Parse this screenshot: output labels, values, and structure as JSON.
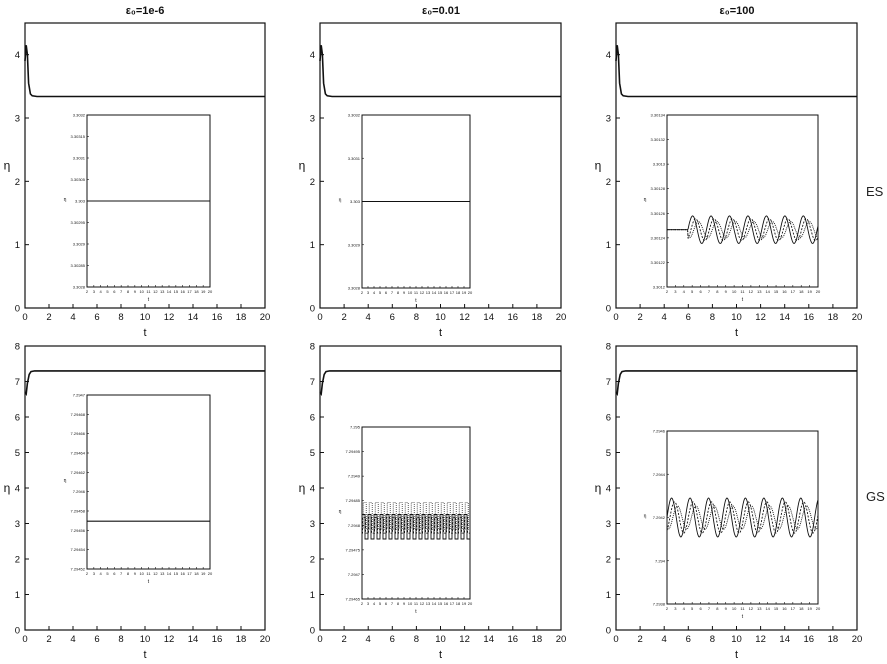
{
  "row_labels": [
    "ES",
    "GS"
  ],
  "chart_data": [
    {
      "type": "line",
      "column_title": "ε₀=1e-6",
      "xlabel": "t",
      "ylabel": "η",
      "xlim": [
        0,
        20
      ],
      "ylim": [
        0,
        4.5
      ],
      "xticks": [
        0,
        2,
        4,
        6,
        8,
        10,
        12,
        14,
        16,
        18,
        20
      ],
      "yticks": [
        0,
        1,
        2,
        3,
        4
      ],
      "series": [
        {
          "x": [
            0,
            0.1,
            0.2,
            0.3,
            0.45,
            0.6,
            1,
            2,
            20
          ],
          "y": [
            3.9,
            4.15,
            4.0,
            3.55,
            3.38,
            3.35,
            3.34,
            3.34,
            3.34
          ]
        }
      ],
      "inset": {
        "ylabel": "η",
        "xlabel": "t",
        "xlim": [
          2,
          20
        ],
        "ylim": [
          3.3028,
          3.3032
        ],
        "yticks": [
          "3.3028",
          "3.30285",
          "3.3029",
          "3.30295",
          "3.303",
          "3.30305",
          "3.3031",
          "3.30315",
          "3.3032"
        ],
        "behavior": "constant",
        "level": 3.303
      }
    },
    {
      "type": "line",
      "column_title": "ε₀=0.01",
      "xlabel": "t",
      "ylabel": "η",
      "xlim": [
        0,
        20
      ],
      "ylim": [
        0,
        4.5
      ],
      "xticks": [
        0,
        2,
        4,
        6,
        8,
        10,
        12,
        14,
        16,
        18,
        20
      ],
      "yticks": [
        0,
        1,
        2,
        3,
        4
      ],
      "series": [
        {
          "x": [
            0,
            0.1,
            0.2,
            0.3,
            0.45,
            0.6,
            1,
            2,
            20
          ],
          "y": [
            3.9,
            4.15,
            4.0,
            3.55,
            3.38,
            3.35,
            3.34,
            3.34,
            3.34
          ]
        }
      ],
      "inset": {
        "ylabel": "η",
        "xlabel": "t",
        "xlim": [
          2,
          20
        ],
        "ylim": [
          3.3028,
          3.3032
        ],
        "yticks": [
          "3.3028",
          "3.3029",
          "3.303",
          "3.3031",
          "3.3032"
        ],
        "behavior": "constant",
        "level": 3.303
      }
    },
    {
      "type": "line",
      "column_title": "ε₀=100",
      "xlabel": "t",
      "ylabel": "η",
      "xlim": [
        0,
        20
      ],
      "ylim": [
        0,
        4.5
      ],
      "xticks": [
        0,
        2,
        4,
        6,
        8,
        10,
        12,
        14,
        16,
        18,
        20
      ],
      "yticks": [
        0,
        1,
        2,
        3,
        4
      ],
      "series": [
        {
          "x": [
            0,
            0.1,
            0.2,
            0.3,
            0.45,
            0.6,
            1,
            2,
            20
          ],
          "y": [
            3.9,
            4.15,
            4.0,
            3.55,
            3.38,
            3.35,
            3.34,
            3.34,
            3.34
          ]
        }
      ],
      "inset": {
        "ylabel": "η",
        "xlabel": "t",
        "xlim": [
          2,
          20
        ],
        "ylim": [
          3.3012,
          3.30135
        ],
        "yticks": [
          "3.3012",
          "3.30122",
          "3.30124",
          "3.30126",
          "3.30128",
          "3.3013",
          "3.30132",
          "3.30134"
        ],
        "behavior": "oscillating",
        "mean": 3.30125,
        "amplitude": 1.2e-05,
        "period": 2.2,
        "start": 4.5
      }
    },
    {
      "type": "line",
      "column_title": "",
      "xlabel": "t",
      "ylabel": "η",
      "xlim": [
        0,
        20
      ],
      "ylim": [
        0,
        8
      ],
      "xticks": [
        0,
        2,
        4,
        6,
        8,
        10,
        12,
        14,
        16,
        18,
        20
      ],
      "yticks": [
        0,
        1,
        2,
        3,
        4,
        5,
        6,
        7,
        8
      ],
      "series": [
        {
          "x": [
            0,
            0.1,
            0.2,
            0.35,
            0.5,
            0.8,
            1.2,
            20
          ],
          "y": [
            6.7,
            6.65,
            6.95,
            7.2,
            7.28,
            7.3,
            7.3,
            7.3
          ]
        }
      ],
      "inset": {
        "ylabel": "η",
        "xlabel": "t",
        "xlim": [
          2,
          20
        ],
        "ylim": [
          7.2944,
          7.2952
        ],
        "yticks": [
          "7.29452",
          "7.29454",
          "7.29456",
          "7.29458",
          "7.2946",
          "7.29462",
          "7.29464",
          "7.29466",
          "7.29468",
          "7.2947"
        ],
        "behavior": "constant",
        "level": 7.29462
      }
    },
    {
      "type": "line",
      "column_title": "",
      "xlabel": "t",
      "ylabel": "η",
      "xlim": [
        0,
        20
      ],
      "ylim": [
        0,
        8
      ],
      "xticks": [
        0,
        2,
        4,
        6,
        8,
        10,
        12,
        14,
        16,
        18,
        20
      ],
      "yticks": [
        0,
        1,
        2,
        3,
        4,
        5,
        6,
        7,
        8
      ],
      "series": [
        {
          "x": [
            0,
            0.1,
            0.2,
            0.35,
            0.5,
            0.8,
            1.2,
            20
          ],
          "y": [
            6.7,
            6.65,
            6.95,
            7.2,
            7.28,
            7.3,
            7.3,
            7.3
          ]
        }
      ],
      "inset": {
        "ylabel": "η",
        "xlabel": "t",
        "xlim": [
          2,
          20
        ],
        "ylim": [
          7.29465,
          7.295
        ],
        "yticks": [
          "7.29465",
          "7.2947",
          "7.29475",
          "7.2948",
          "7.29485",
          "7.2949",
          "7.29495",
          "7.295"
        ],
        "behavior": "square",
        "mean": 7.2948,
        "amplitude": 4e-05,
        "period": 1.0,
        "start": 2
      }
    },
    {
      "type": "line",
      "column_title": "",
      "xlabel": "t",
      "ylabel": "η",
      "xlim": [
        0,
        20
      ],
      "ylim": [
        0,
        8
      ],
      "xticks": [
        0,
        2,
        4,
        6,
        8,
        10,
        12,
        14,
        16,
        18,
        20
      ],
      "yticks": [
        0,
        1,
        2,
        3,
        4,
        5,
        6,
        7,
        8
      ],
      "series": [
        {
          "x": [
            0,
            0.1,
            0.2,
            0.35,
            0.5,
            0.8,
            1.2,
            20
          ],
          "y": [
            6.7,
            6.65,
            6.95,
            7.2,
            7.28,
            7.3,
            7.3,
            7.3
          ]
        }
      ],
      "inset": {
        "ylabel": "η",
        "xlabel": "t",
        "xlim": [
          2,
          20
        ],
        "ylim": [
          7.2938,
          7.2946
        ],
        "yticks": [
          "7.2938",
          "7.294",
          "7.2942",
          "7.2944",
          "7.2946"
        ],
        "behavior": "oscillating",
        "mean": 7.2942,
        "amplitude": 9e-05,
        "period": 2.2,
        "start": 2
      }
    }
  ]
}
